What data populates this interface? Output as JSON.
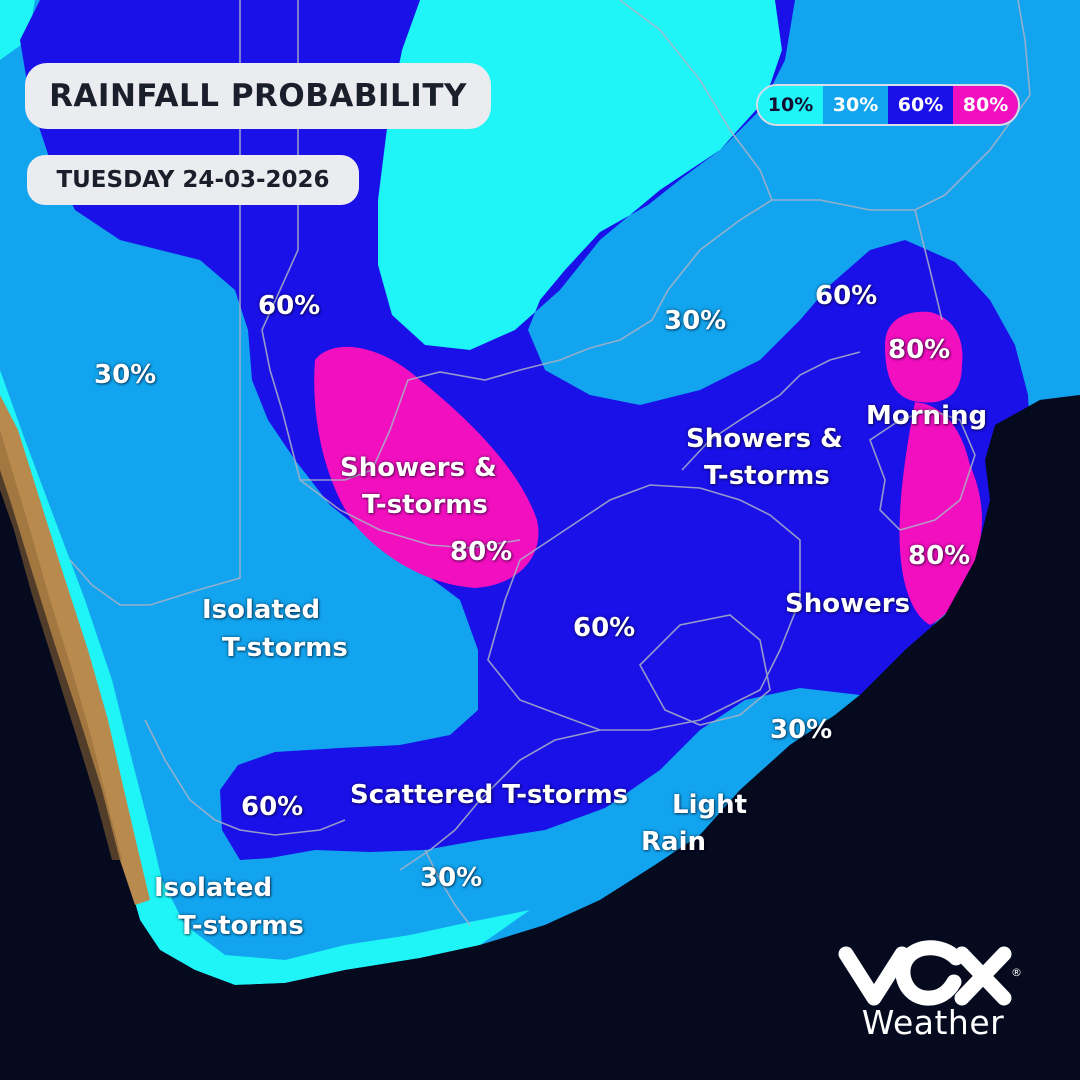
{
  "header": {
    "title": "RAINFALL PROBABILITY",
    "date": "TUESDAY 24-03-2026"
  },
  "legend": [
    {
      "label": "10%",
      "color": "#1ff5f7"
    },
    {
      "label": "30%",
      "color": "#12a4ee"
    },
    {
      "label": "60%",
      "color": "#1a10e8"
    },
    {
      "label": "80%",
      "color": "#f10fbf"
    }
  ],
  "colors": {
    "ocean": "#050a1e",
    "land": "#b98a4e",
    "band_10": "#1ff5f7",
    "band_30": "#12a4ee",
    "band_60": "#1a10e8",
    "band_80": "#f10fbf",
    "borders": "#9aa3b8"
  },
  "map_labels": {
    "west_60": "60%",
    "west_30": "30%",
    "north_30": "30%",
    "northeast_60": "60%",
    "northeast_80": "80%",
    "morning": "Morning",
    "central_north_showers_l1": "Showers &",
    "central_north_showers_l2": "T-storms",
    "northwest_showers_l1": "Showers &",
    "northwest_showers_l2": "T-storms",
    "northwest_80": "80%",
    "east_80": "80%",
    "showers": "Showers",
    "central_60": "60%",
    "isolated_west_l1": "Isolated",
    "isolated_west_l2": "T-storms",
    "southeast_30": "30%",
    "scattered": "Scattered T-storms",
    "southwest_60": "60%",
    "light_rain_l1": "Light",
    "light_rain_l2": "Rain",
    "south_30": "30%",
    "isolated_south_l1": "Isolated",
    "isolated_south_l2": "T-storms"
  },
  "brand": {
    "logo": "Vox",
    "name": "Weather",
    "mark": "®"
  }
}
